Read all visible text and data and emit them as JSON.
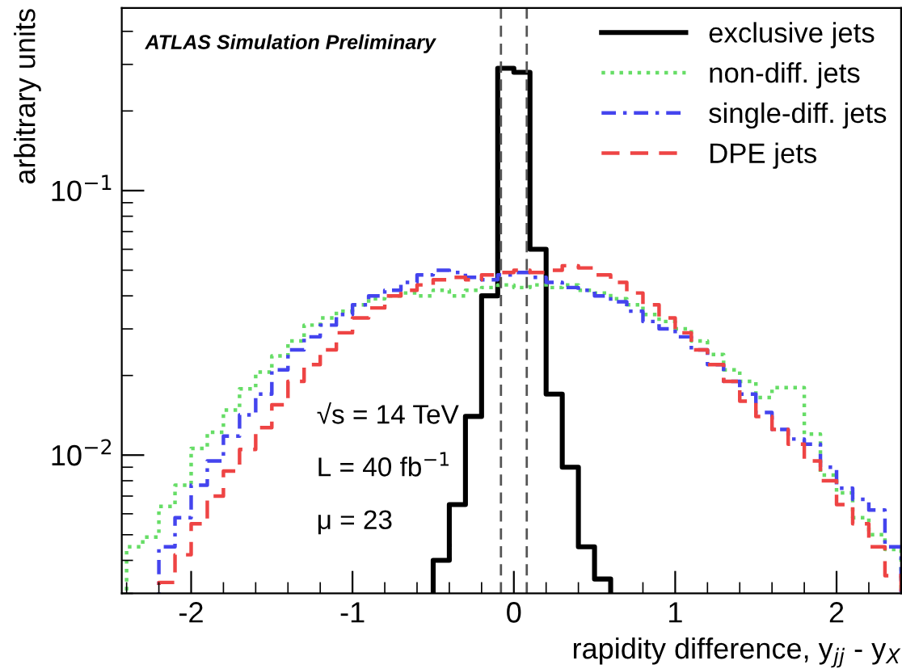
{
  "chart_data": {
    "type": "histogram",
    "xlabel": "rapidity difference, y$_{jj}$ - y$_{X}$",
    "ylabel": "arbitrary units",
    "bins": [
      -2.4,
      -2.3,
      -2.2,
      -2.1,
      -2.0,
      -1.9,
      -1.8,
      -1.7,
      -1.6,
      -1.5,
      -1.4,
      -1.3,
      -1.2,
      -1.1,
      -1.0,
      -0.9,
      -0.8,
      -0.7,
      -0.6,
      -0.5,
      -0.4,
      -0.3,
      -0.2,
      -0.1,
      0.0,
      0.1,
      0.2,
      0.3,
      0.4,
      0.5,
      0.6,
      0.7,
      0.8,
      0.9,
      1.0,
      1.1,
      1.2,
      1.3,
      1.4,
      1.5,
      1.6,
      1.7,
      1.8,
      1.9,
      2.0,
      2.1,
      2.2,
      2.3,
      2.4
    ],
    "series": [
      {
        "name": "exclusive jets",
        "color": "#000000",
        "line_style": "solid",
        "bins": [
          -0.5,
          -0.4,
          -0.3,
          -0.2,
          -0.1,
          0.0,
          0.1,
          0.2,
          0.3,
          0.4,
          0.5,
          0.6
        ],
        "values": [
          0.004,
          0.0065,
          0.014,
          0.04,
          0.29,
          0.28,
          0.06,
          0.017,
          0.009,
          0.0045,
          0.0034
        ]
      },
      {
        "name": "non-diff. jets",
        "color": "#66dd66",
        "line_style": "dotted",
        "values": [
          0.0045,
          0.0049,
          0.0064,
          0.0077,
          0.0106,
          0.0122,
          0.0148,
          0.0178,
          0.0206,
          0.0237,
          0.027,
          0.031,
          0.033,
          0.035,
          0.037,
          0.039,
          0.04,
          0.041,
          0.04,
          0.042,
          0.04,
          0.042,
          0.043,
          0.044,
          0.043,
          0.044,
          0.043,
          0.044,
          0.042,
          0.041,
          0.039,
          0.037,
          0.034,
          0.032,
          0.03,
          0.027,
          0.024,
          0.021,
          0.019,
          0.0165,
          0.018,
          0.018,
          0.012,
          0.0084,
          0.0072,
          0.0058,
          0.005,
          0.0044
        ]
      },
      {
        "name": "single-diff. jets",
        "color": "#4444ee",
        "line_style": "dashdot",
        "bins": [
          -2.2,
          -2.1,
          -2.0,
          -1.9,
          -1.8,
          -1.7,
          -1.6,
          -1.5,
          -1.4,
          -1.3,
          -1.2,
          -1.1,
          -1.0,
          -0.9,
          -0.8,
          -0.7,
          -0.6,
          -0.5,
          -0.4,
          -0.3,
          -0.2,
          -0.1,
          0.0,
          0.1,
          0.2,
          0.3,
          0.4,
          0.5,
          0.6,
          0.7,
          0.8,
          0.9,
          1.0,
          1.1,
          1.2,
          1.3,
          1.4,
          1.5,
          1.6,
          1.7,
          1.8,
          1.9,
          2.0,
          2.1,
          2.2,
          2.3,
          2.4
        ],
        "values": [
          0.0045,
          0.0058,
          0.0077,
          0.0095,
          0.0118,
          0.0142,
          0.017,
          0.021,
          0.025,
          0.028,
          0.031,
          0.034,
          0.037,
          0.04,
          0.042,
          0.045,
          0.048,
          0.05,
          0.049,
          0.047,
          0.046,
          0.048,
          0.049,
          0.047,
          0.045,
          0.043,
          0.042,
          0.04,
          0.038,
          0.035,
          0.032,
          0.03,
          0.028,
          0.025,
          0.022,
          0.019,
          0.017,
          0.0145,
          0.0125,
          0.0115,
          0.011,
          0.009,
          0.0075,
          0.0068,
          0.0062,
          0.0045
        ]
      },
      {
        "name": "DPE jets",
        "color": "#ee4444",
        "line_style": "dashed",
        "bins": [
          -2.2,
          -2.1,
          -2.0,
          -1.9,
          -1.8,
          -1.7,
          -1.6,
          -1.5,
          -1.4,
          -1.3,
          -1.2,
          -1.1,
          -1.0,
          -0.9,
          -0.8,
          -0.7,
          -0.6,
          -0.5,
          -0.4,
          -0.3,
          -0.2,
          -0.1,
          0.0,
          0.1,
          0.2,
          0.3,
          0.4,
          0.5,
          0.6,
          0.7,
          0.8,
          0.9,
          1.0,
          1.1,
          1.2,
          1.3,
          1.4,
          1.5,
          1.6,
          1.7,
          1.8,
          1.9,
          2.0,
          2.1,
          2.2,
          2.3,
          2.4
        ],
        "values": [
          0.0033,
          0.0042,
          0.0055,
          0.007,
          0.0087,
          0.0105,
          0.0127,
          0.0155,
          0.019,
          0.022,
          0.025,
          0.029,
          0.033,
          0.036,
          0.04,
          0.042,
          0.044,
          0.046,
          0.047,
          0.046,
          0.048,
          0.049,
          0.05,
          0.049,
          0.05,
          0.052,
          0.051,
          0.048,
          0.045,
          0.041,
          0.037,
          0.033,
          0.029,
          0.025,
          0.022,
          0.019,
          0.016,
          0.014,
          0.0125,
          0.011,
          0.0095,
          0.008,
          0.0065,
          0.0055,
          0.0045,
          0.0035
        ]
      }
    ],
    "ref_lines": [
      {
        "axis": "x",
        "value": -0.08,
        "color": "#555555",
        "line_style": "dashed"
      },
      {
        "axis": "x",
        "value": 0.08,
        "color": "#555555",
        "line_style": "dashed"
      }
    ],
    "annotations": [
      "ATLAS Simulation Preliminary",
      "√s = 14 TeV",
      "L = 40 fb$^{−1}$",
      "μ = 23"
    ],
    "log": "y",
    "xlim": [
      -2.43,
      2.4
    ],
    "ylim": [
      0.003,
      0.49
    ],
    "xticks": [
      -2,
      -1,
      0,
      1,
      2
    ],
    "yticks": [
      {
        "value": 0.1,
        "label": "10$^{−1}$"
      },
      {
        "value": 0.01,
        "label": "10$^{−2}$"
      }
    ],
    "legend": "top right",
    "grid": false
  }
}
